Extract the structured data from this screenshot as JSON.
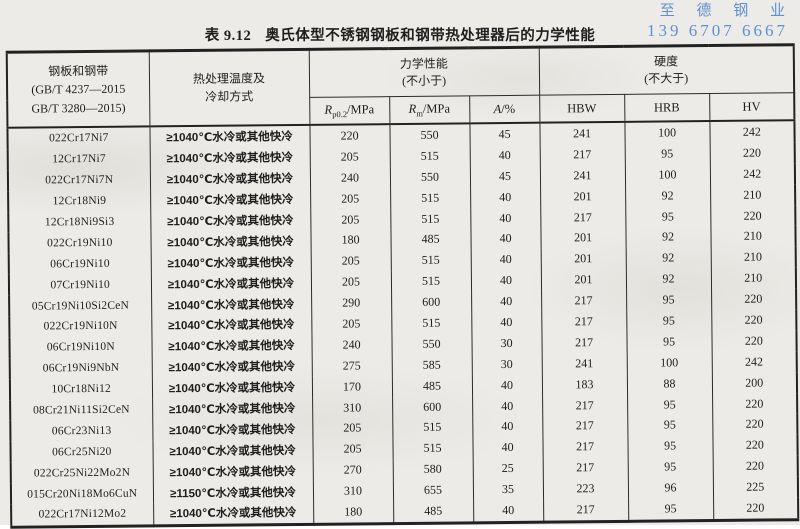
{
  "watermark": {
    "company": "至 德 钢 业",
    "phone": "139 6707 6667",
    "color": "#5f90d2"
  },
  "title": {
    "number": "表 9.12",
    "text": "奥氏体型不锈钢钢板和钢带热处理器后的力学性能"
  },
  "table": {
    "col1_header_lines": [
      "钢板和钢带",
      "(GB/T 4237—2015",
      "GB/T 3280—2015)"
    ],
    "col2_header_lines": [
      "热处理温度及",
      "冷却方式"
    ],
    "mech_group": {
      "line1": "力学性能",
      "line2": "(不小于)"
    },
    "hard_group": {
      "line1": "硬度",
      "line2": "(不大于)"
    },
    "subheaders": {
      "rp": {
        "sym": "R",
        "sub": "p0.2",
        "unit": "/MPa"
      },
      "rm": {
        "sym": "R",
        "sub": "m",
        "unit": "/MPa"
      },
      "a": {
        "sym": "A",
        "unit": "/%"
      },
      "hbw": "HBW",
      "hrb": "HRB",
      "hv": "HV"
    },
    "rows": [
      [
        "022Cr17Ni7",
        "≥1040℃水冷或其他快冷",
        "220",
        "550",
        "45",
        "241",
        "100",
        "242"
      ],
      [
        "12Cr17Ni7",
        "≥1040℃水冷或其他快冷",
        "205",
        "515",
        "40",
        "217",
        "95",
        "220"
      ],
      [
        "022Cr17Ni7N",
        "≥1040℃水冷或其他快冷",
        "240",
        "550",
        "45",
        "241",
        "100",
        "242"
      ],
      [
        "12Cr18Ni9",
        "≥1040℃水冷或其他快冷",
        "205",
        "515",
        "40",
        "201",
        "92",
        "210"
      ],
      [
        "12Cr18Ni9Si3",
        "≥1040℃水冷或其他快冷",
        "205",
        "515",
        "40",
        "217",
        "95",
        "220"
      ],
      [
        "022Cr19Ni10",
        "≥1040℃水冷或其他快冷",
        "180",
        "485",
        "40",
        "201",
        "92",
        "210"
      ],
      [
        "06Cr19Ni10",
        "≥1040℃水冷或其他快冷",
        "205",
        "515",
        "40",
        "201",
        "92",
        "210"
      ],
      [
        "07Cr19Ni10",
        "≥1040℃水冷或其他快冷",
        "205",
        "515",
        "40",
        "201",
        "92",
        "210"
      ],
      [
        "05Cr19Ni10Si2CeN",
        "≥1040℃水冷或其他快冷",
        "290",
        "600",
        "40",
        "217",
        "95",
        "220"
      ],
      [
        "022Cr19Ni10N",
        "≥1040℃水冷或其他快冷",
        "205",
        "515",
        "40",
        "217",
        "95",
        "220"
      ],
      [
        "06Cr19Ni10N",
        "≥1040℃水冷或其他快冷",
        "240",
        "550",
        "30",
        "217",
        "95",
        "220"
      ],
      [
        "06Cr19Ni9NbN",
        "≥1040℃水冷或其他快冷",
        "275",
        "585",
        "30",
        "241",
        "100",
        "242"
      ],
      [
        "10Cr18Ni12",
        "≥1040℃水冷或其他快冷",
        "170",
        "485",
        "40",
        "183",
        "88",
        "200"
      ],
      [
        "08Cr21Ni11Si2CeN",
        "≥1040℃水冷或其他快冷",
        "310",
        "600",
        "40",
        "217",
        "95",
        "220"
      ],
      [
        "06Cr23Ni13",
        "≥1040℃水冷或其他快冷",
        "205",
        "515",
        "40",
        "217",
        "95",
        "220"
      ],
      [
        "06Cr25Ni20",
        "≥1040℃水冷或其他快冷",
        "205",
        "515",
        "40",
        "217",
        "95",
        "220"
      ],
      [
        "022Cr25Ni22Mo2N",
        "≥1040℃水冷或其他快冷",
        "270",
        "580",
        "25",
        "217",
        "95",
        "220"
      ],
      [
        "015Cr20Ni18Mo6CuN",
        "≥1150℃水冷或其他快冷",
        "310",
        "655",
        "35",
        "223",
        "96",
        "225"
      ],
      [
        "022Cr17Ni12Mo2",
        "≥1040℃水冷或其他快冷",
        "180",
        "485",
        "40",
        "217",
        "95",
        "220"
      ]
    ]
  }
}
